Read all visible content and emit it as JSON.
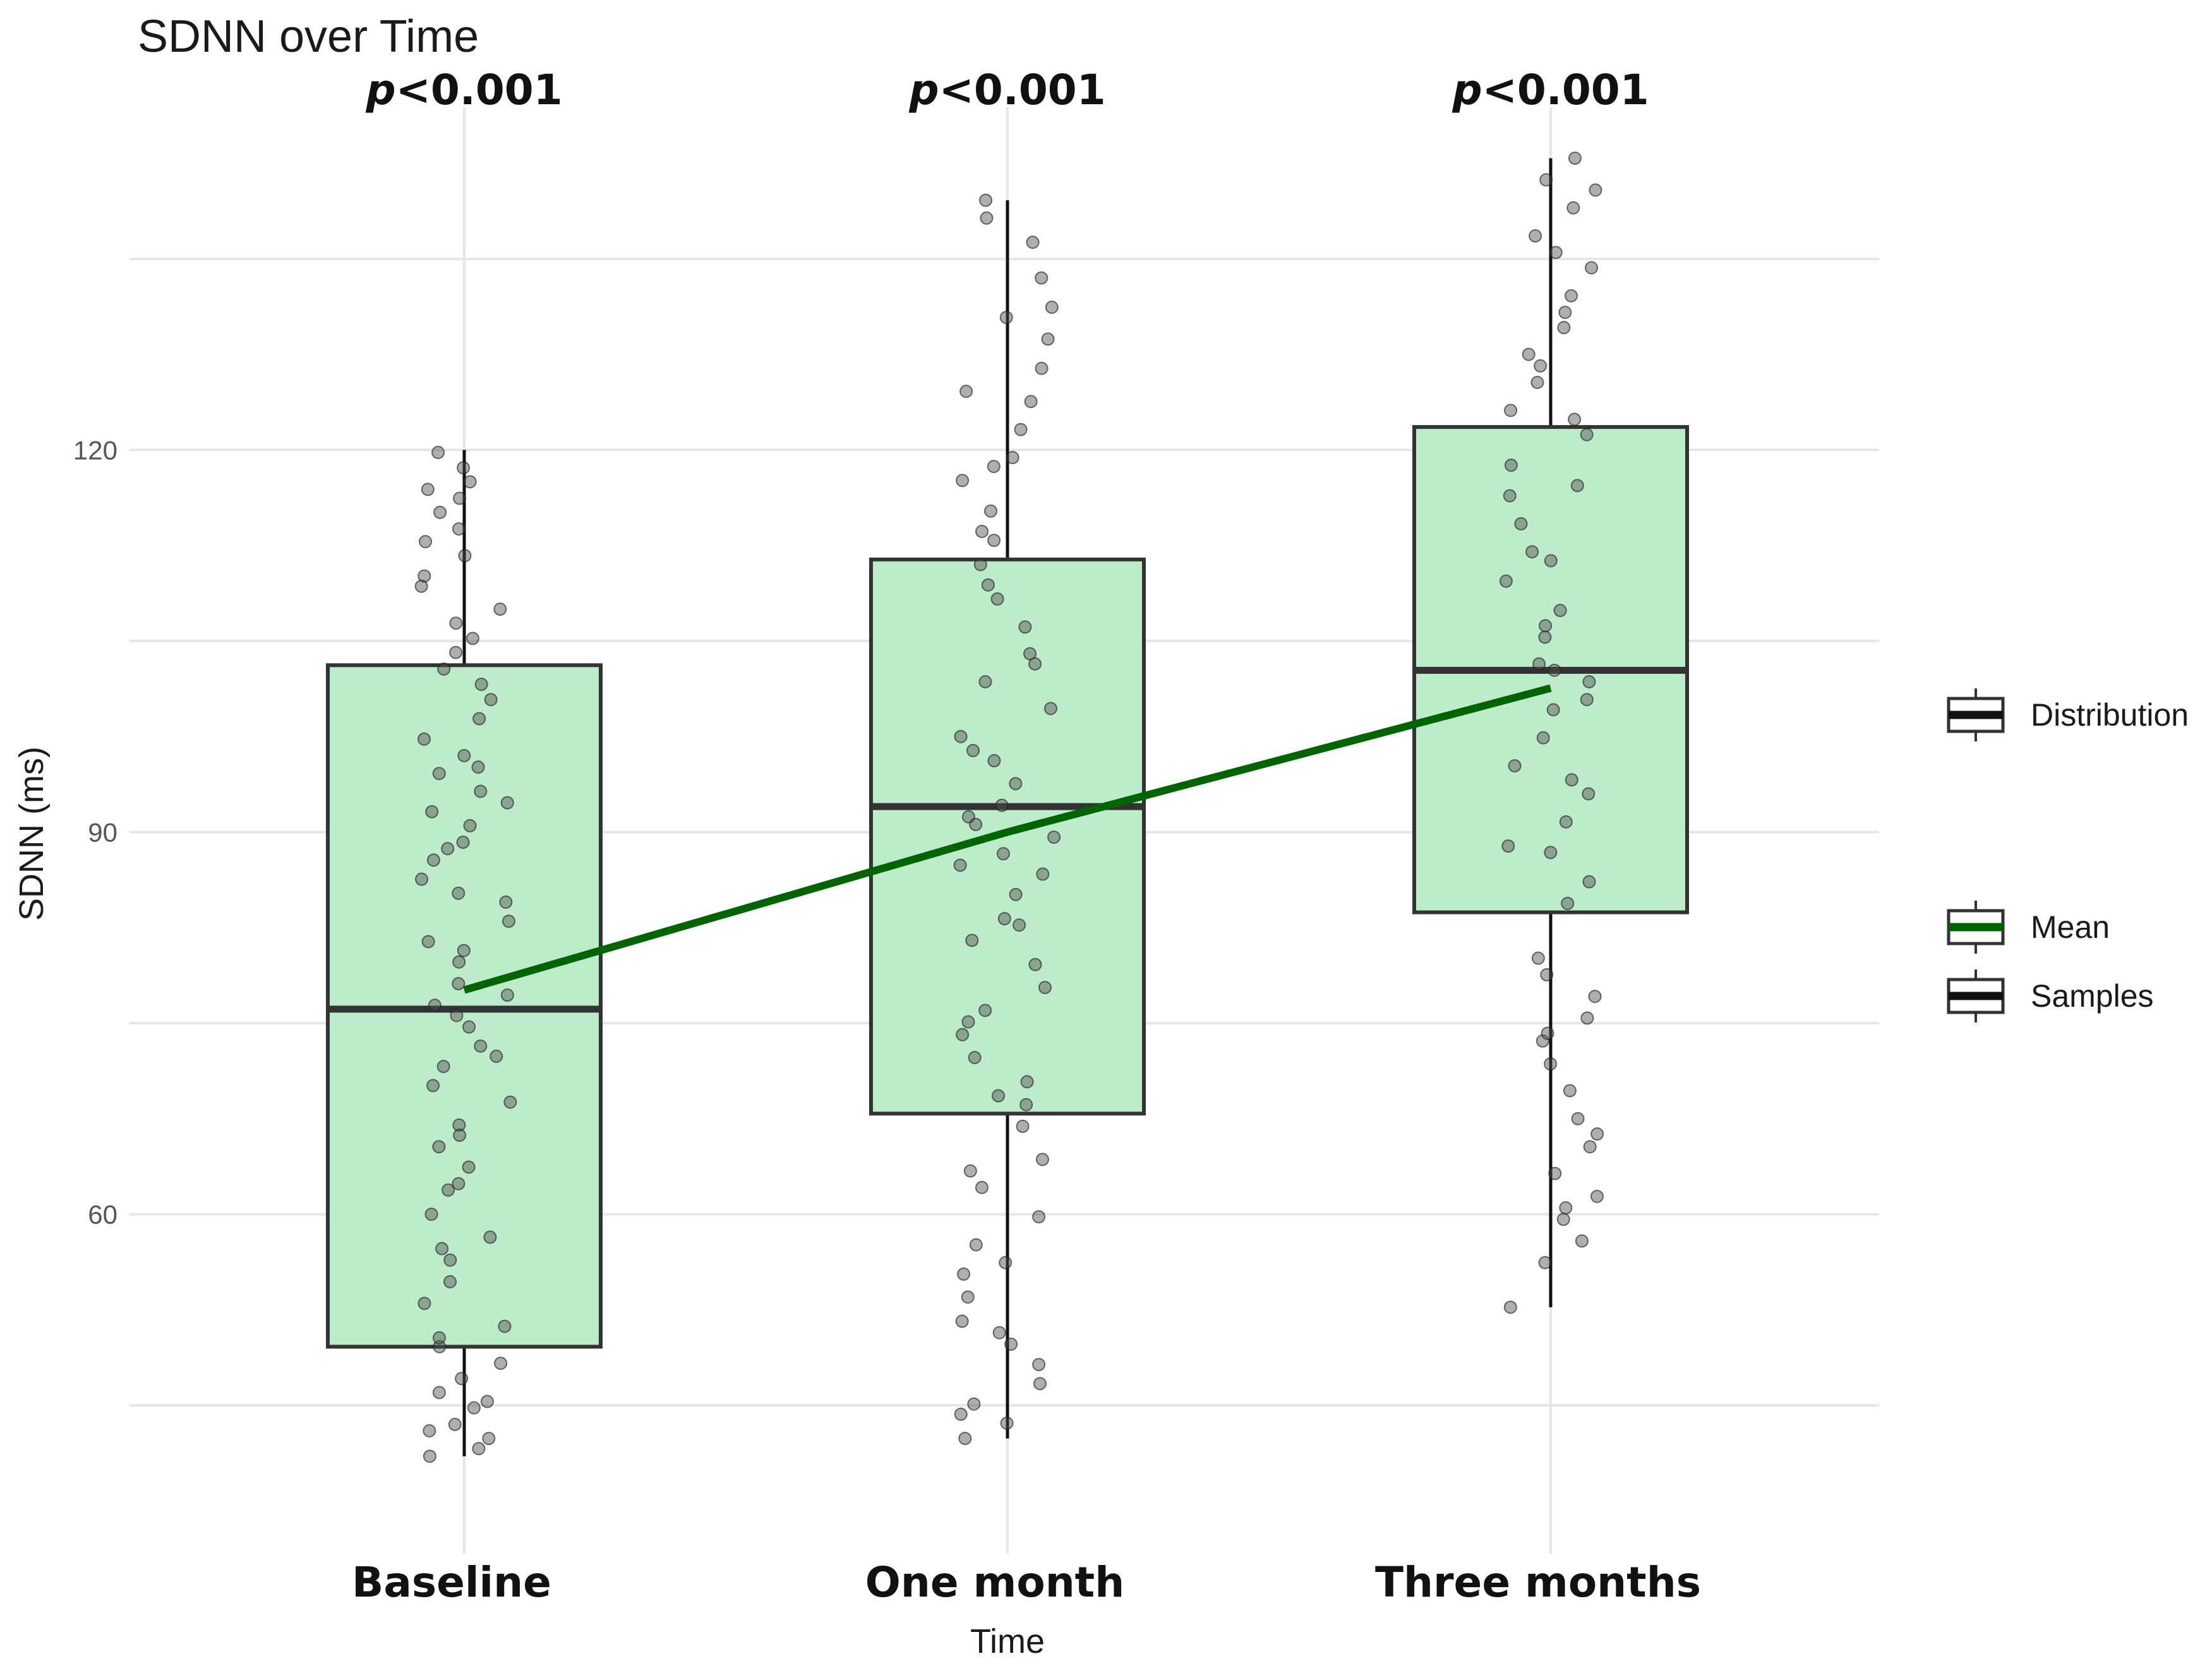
{
  "chart_data": {
    "type": "box",
    "title": "SDNN over Time",
    "xlabel": "Time",
    "ylabel": "SDNN (ms)",
    "ylim": [
      40,
      140
    ],
    "yticks": [
      60,
      90,
      120
    ],
    "categories": [
      "Baseline",
      "One month",
      "Three months"
    ],
    "annotations": [
      {
        "category": "Baseline",
        "prefix": "p",
        "text": "<0.001"
      },
      {
        "category": "One month",
        "prefix": "p",
        "text": "<0.001"
      },
      {
        "category": "Three months",
        "prefix": "p",
        "text": "<0.001"
      }
    ],
    "boxes": [
      {
        "category": "Baseline",
        "whisker_low": 41,
        "q1": 49.6,
        "median": 76.1,
        "q3": 103.1,
        "whisker_high": 120
      },
      {
        "category": "One month",
        "whisker_low": 42.4,
        "q1": 67.9,
        "median": 92,
        "q3": 111.4,
        "whisker_high": 139.6
      },
      {
        "category": "Three months",
        "whisker_low": 52.7,
        "q1": 83.7,
        "median": 102.7,
        "q3": 121.8,
        "whisker_high": 142.9
      }
    ],
    "mean_line": {
      "name": "Mean",
      "color": "#006400",
      "values": [
        77.6,
        90,
        101.3
      ]
    },
    "samples": [
      {
        "category": "Baseline",
        "values": [
          118.6,
          117.5,
          116.9,
          115.1,
          113.8,
          111.7,
          110.1,
          107.5,
          105.2,
          104.1,
          102.8,
          100.4,
          98.9,
          97.3,
          96.0,
          94.6,
          93.2,
          91.6,
          90.5,
          89.2,
          87.8,
          86.3,
          84.5,
          83.0,
          81.4,
          79.8,
          77.2,
          76.4,
          75.6,
          74.7,
          73.2,
          71.6,
          70.1,
          68.8,
          67.0,
          65.3,
          63.7,
          61.9,
          60.0,
          58.2,
          56.4,
          54.7,
          53.0,
          51.2,
          49.6,
          48.3,
          47.1,
          46.0,
          44.8,
          43.5,
          42.4,
          41.6,
          41.0,
          119.8,
          116.2,
          112.8,
          109.3,
          106.4,
          101.6,
          95.1,
          92.3,
          88.7,
          85.2,
          80.7,
          78.1,
          72.4,
          66.2,
          62.4,
          57.3,
          50.3,
          45.3,
          43.0
        ]
      },
      {
        "category": "One month",
        "values": [
          139.6,
          136.3,
          133.5,
          131.2,
          128.7,
          126.4,
          123.8,
          121.6,
          119.4,
          117.6,
          115.2,
          112.9,
          111.0,
          108.3,
          106.1,
          104.0,
          101.8,
          99.7,
          97.5,
          95.6,
          93.8,
          92.1,
          91.2,
          89.6,
          88.3,
          86.7,
          85.1,
          83.2,
          81.5,
          79.6,
          77.8,
          76.0,
          74.1,
          72.3,
          70.4,
          68.6,
          66.9,
          64.3,
          62.1,
          59.8,
          57.6,
          55.3,
          53.5,
          51.6,
          49.8,
          48.2,
          46.7,
          45.1,
          43.6,
          42.4,
          138.2,
          130.4,
          124.6,
          118.7,
          113.6,
          109.4,
          103.2,
          96.4,
          90.6,
          87.4,
          82.7,
          75.1,
          69.3,
          63.4,
          56.2,
          50.7,
          44.3
        ]
      },
      {
        "category": "Three months",
        "values": [
          142.9,
          141.2,
          139.0,
          136.8,
          134.3,
          132.1,
          129.6,
          127.5,
          125.3,
          123.1,
          121.2,
          118.8,
          116.4,
          114.2,
          112.0,
          109.7,
          107.4,
          105.3,
          103.2,
          102.7,
          101.8,
          99.6,
          97.4,
          95.2,
          93.0,
          90.8,
          88.4,
          86.1,
          84.4,
          78.8,
          77.1,
          75.4,
          73.6,
          71.8,
          69.7,
          67.5,
          65.3,
          63.2,
          61.4,
          59.6,
          57.9,
          56.2,
          52.7,
          140.4,
          135.5,
          130.8,
          126.6,
          122.4,
          117.2,
          111.3,
          106.2,
          100.4,
          94.1,
          88.9,
          80.1,
          74.2,
          66.3,
          60.5
        ]
      }
    ],
    "legend": {
      "position": "right",
      "entries": [
        {
          "label": "Distribution",
          "color": "#111111"
        },
        {
          "label": "Mean",
          "color": "#006400"
        },
        {
          "label": "Samples",
          "color": "#111111"
        }
      ]
    },
    "colors": {
      "box_fill": "#bdeccb",
      "box_stroke": "#333333",
      "median": "#333333",
      "point": "#4d4d4d",
      "whisker": "#111111",
      "grid": "#e6e6e6"
    }
  }
}
